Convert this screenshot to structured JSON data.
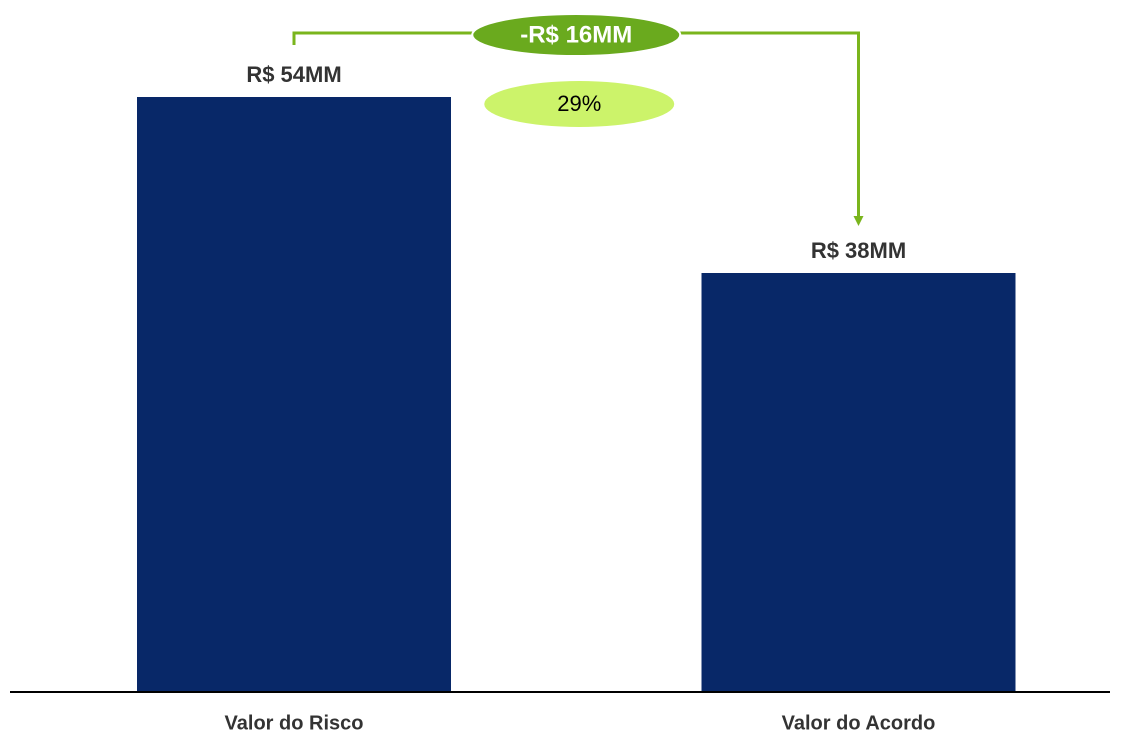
{
  "chart_data": {
    "type": "bar",
    "categories": [
      "Valor do Risco",
      "Valor do Acordo"
    ],
    "values": [
      54,
      38
    ],
    "value_labels": [
      "R$ 54MM",
      "R$ 38MM"
    ],
    "color": "#082868",
    "annotations": {
      "difference": "-R$ 16MM",
      "percent": "29%"
    }
  }
}
